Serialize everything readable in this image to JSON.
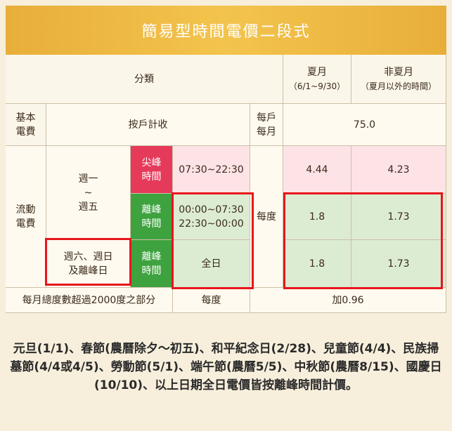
{
  "title": "簡易型時間電價二段式",
  "header": {
    "category": "分類",
    "summer_label": "夏月",
    "summer_range": "（6/1~9/30）",
    "nonsummer_label": "非夏月",
    "nonsummer_range": "（夏月以外的時間）"
  },
  "basic": {
    "label_line1": "基本",
    "label_line2": "電費",
    "charge": "按戶計收",
    "unit_line1": "每戶",
    "unit_line2": "每月",
    "value": "75.0"
  },
  "flow": {
    "label_line1": "流動",
    "label_line2": "電費",
    "weekday_line1": "週一",
    "weekday_line2": "~",
    "weekday_line3": "週五",
    "weekend_line1": "週六、週日",
    "weekend_line2": "及離峰日",
    "peak_line1": "尖峰",
    "peak_line2": "時間",
    "offpeak_line1": "離峰",
    "offpeak_line2": "時間",
    "peak_time": "07:30~22:30",
    "offpeak_time_line1": "00:00~07:30",
    "offpeak_time_line2": "22:30~00:00",
    "allday": "全日",
    "unit": "每度",
    "peak_summer": "4.44",
    "peak_nonsummer": "4.23",
    "offpeak_summer": "1.8",
    "offpeak_nonsummer": "1.73",
    "weekend_summer": "1.8",
    "weekend_nonsummer": "1.73"
  },
  "excess": {
    "label": "每月總度數超過2000度之部分",
    "unit": "每度",
    "value": "加0.96"
  },
  "footnote": "元旦(1/1)、春節(農曆除夕～初五)、和平紀念日(2/28)、兒童節(4/4)、民族掃墓節(4/4或4/5)、勞動節(5/1)、端午節(農曆5/5)、中秋節(農曆8/15)、國慶日(10/10)、以上日期全日電價皆按離峰時間計價。",
  "colors": {
    "title_bar": "#f3c44d",
    "peak": "#e63a5a",
    "offpeak": "#3ea23f",
    "highlight_border": "#e8151b"
  }
}
